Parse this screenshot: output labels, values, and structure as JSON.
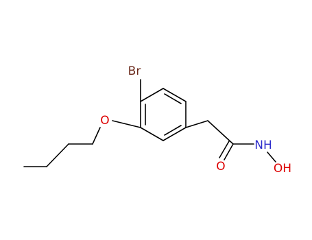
{
  "atoms": {
    "bromine": "Br",
    "ether_oxygen": "O",
    "carbonyl_oxygen": "O",
    "amide_nitrogen": "NH",
    "hydroxyl": "OH"
  }
}
